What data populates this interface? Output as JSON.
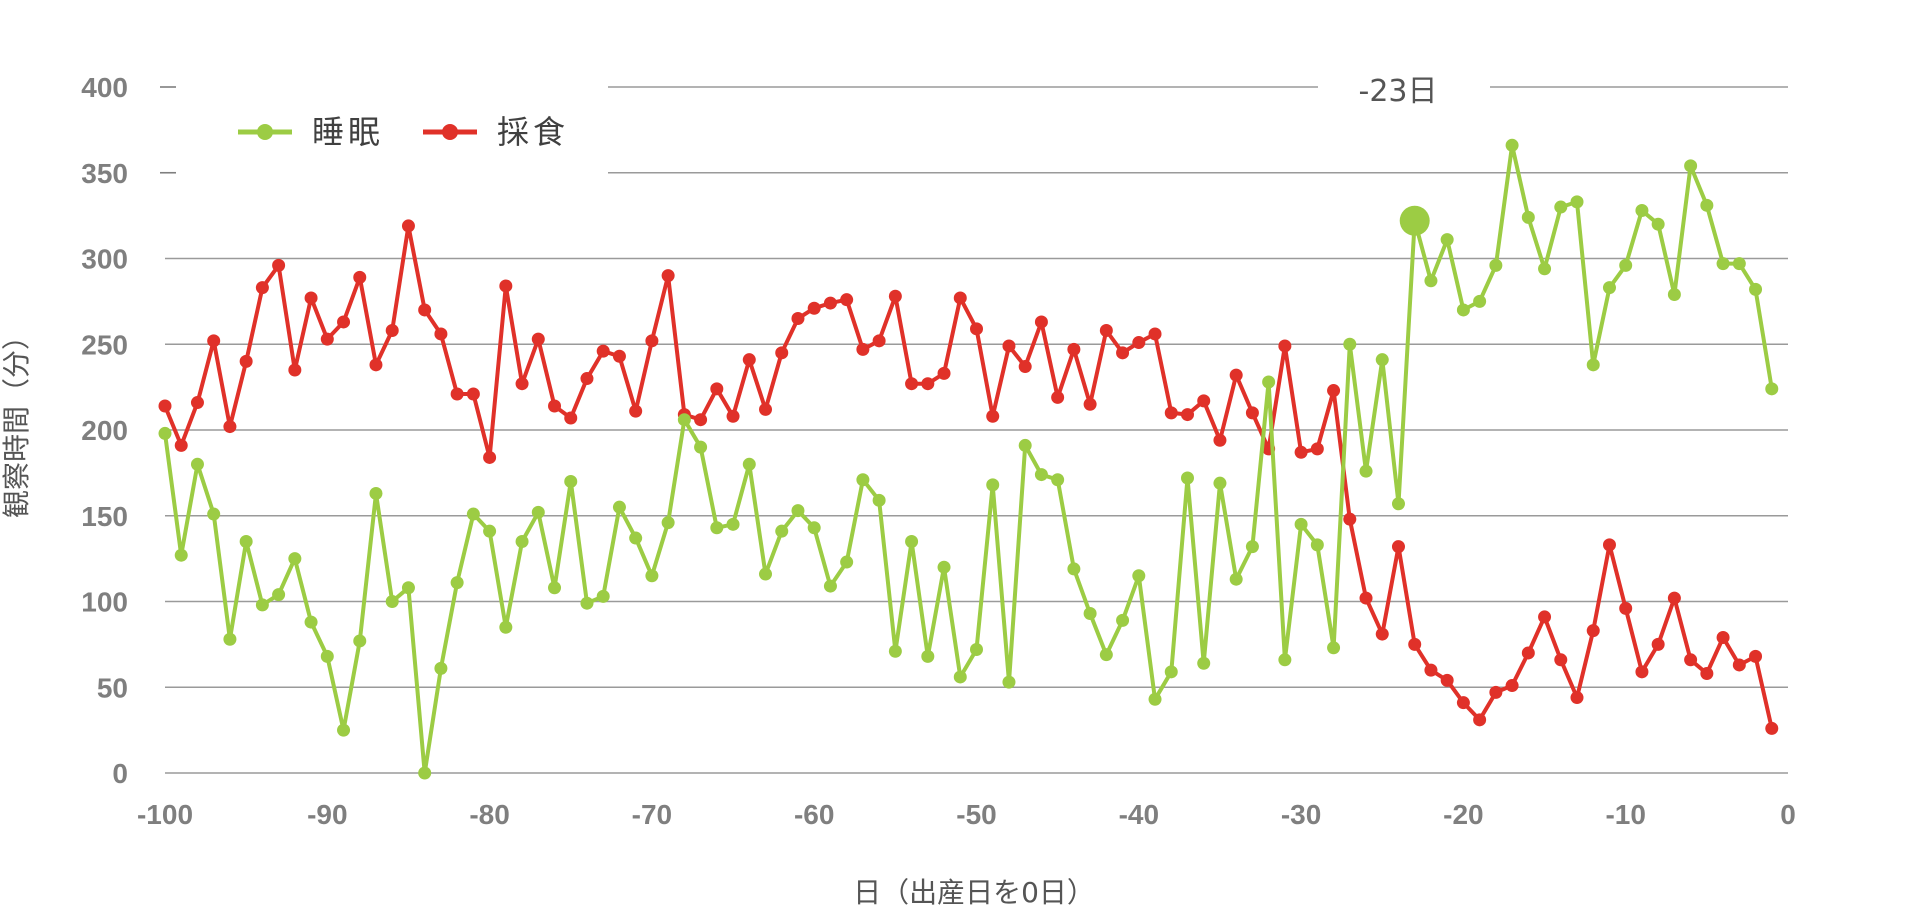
{
  "chart_data": {
    "type": "line",
    "title": "",
    "xlabel": "日（出産日を0日）",
    "ylabel": "観察時間（分）",
    "xlim": [
      -100,
      0
    ],
    "ylim": [
      0,
      400
    ],
    "x_ticks": [
      "-100",
      "-90",
      "-80",
      "-70",
      "-60",
      "-50",
      "-40",
      "-30",
      "-20",
      "-10",
      "0"
    ],
    "y_ticks": [
      "0",
      "50",
      "100",
      "150",
      "200",
      "250",
      "300",
      "350",
      "400"
    ],
    "grid": "horizontal",
    "legend_position": "top-left",
    "annotation": {
      "text": "-23日",
      "x": -23,
      "y": 322
    },
    "x": [
      -100,
      -99,
      -98,
      -97,
      -96,
      -95,
      -94,
      -93,
      -92,
      -91,
      -90,
      -89,
      -88,
      -87,
      -86,
      -85,
      -84,
      -83,
      -82,
      -81,
      -80,
      -79,
      -78,
      -77,
      -76,
      -75,
      -74,
      -73,
      -72,
      -71,
      -70,
      -69,
      -68,
      -67,
      -66,
      -65,
      -64,
      -63,
      -62,
      -61,
      -60,
      -59,
      -58,
      -57,
      -56,
      -55,
      -54,
      -53,
      -52,
      -51,
      -50,
      -49,
      -48,
      -47,
      -46,
      -45,
      -44,
      -43,
      -42,
      -41,
      -40,
      -39,
      -38,
      -37,
      -36,
      -35,
      -34,
      -33,
      -32,
      -31,
      -30,
      -29,
      -28,
      -27,
      -26,
      -25,
      -24,
      -23,
      -22,
      -21,
      -20,
      -19,
      -18,
      -17,
      -16,
      -15,
      -14,
      -13,
      -12,
      -11,
      -10,
      -9,
      -8,
      -7,
      -6,
      -5,
      -4,
      -3,
      -2,
      -1
    ],
    "series": [
      {
        "name": "睡眠",
        "color": "#9ccc44",
        "values": [
          198,
          127,
          180,
          151,
          78,
          135,
          98,
          104,
          125,
          88,
          68,
          25,
          77,
          163,
          100,
          108,
          0,
          61,
          111,
          151,
          141,
          85,
          135,
          152,
          108,
          170,
          99,
          103,
          155,
          137,
          115,
          146,
          206,
          190,
          143,
          145,
          180,
          116,
          141,
          153,
          143,
          109,
          123,
          171,
          159,
          71,
          135,
          68,
          120,
          56,
          72,
          168,
          53,
          191,
          174,
          171,
          119,
          93,
          69,
          89,
          115,
          43,
          59,
          172,
          64,
          169,
          113,
          132,
          228,
          66,
          145,
          133,
          73,
          250,
          176,
          241,
          157,
          322,
          287,
          311,
          270,
          275,
          296,
          366,
          324,
          294,
          330,
          333,
          238,
          283,
          296,
          328,
          320,
          279,
          354,
          331,
          297,
          297,
          282,
          224
        ]
      },
      {
        "name": "採食",
        "color": "#e03129",
        "values": [
          214,
          191,
          216,
          252,
          202,
          240,
          283,
          296,
          235,
          277,
          253,
          263,
          289,
          238,
          258,
          319,
          270,
          256,
          221,
          221,
          184,
          284,
          227,
          253,
          214,
          207,
          230,
          246,
          243,
          211,
          252,
          290,
          209,
          206,
          224,
          208,
          241,
          212,
          245,
          265,
          271,
          274,
          276,
          247,
          252,
          278,
          227,
          227,
          233,
          277,
          259,
          208,
          249,
          237,
          263,
          219,
          247,
          215,
          258,
          245,
          251,
          256,
          210,
          209,
          217,
          194,
          232,
          210,
          189,
          249,
          187,
          189,
          223,
          148,
          102,
          81,
          132,
          75,
          60,
          54,
          41,
          31,
          47,
          51,
          70,
          91,
          66,
          44,
          83,
          133,
          96,
          59,
          75,
          102,
          66,
          58,
          79,
          63,
          68,
          26
        ]
      }
    ]
  }
}
